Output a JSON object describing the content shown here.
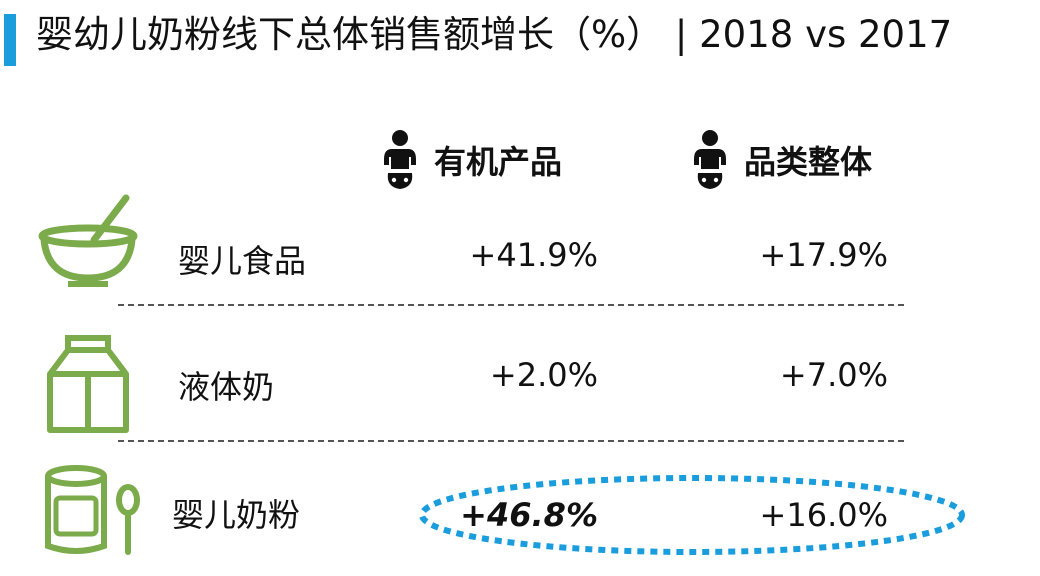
{
  "header": {
    "title": "婴幼儿奶粉线下总体销售额增长（%） | 2018 vs 2017",
    "accent_color": "#1a9ddc"
  },
  "columns": [
    {
      "label": "有机产品",
      "icon": "baby-icon"
    },
    {
      "label": "品类整体",
      "icon": "baby-icon"
    }
  ],
  "rows": [
    {
      "label": "婴儿食品",
      "icon": "bowl-icon",
      "organic": "+41.9%",
      "overall": "+17.9%"
    },
    {
      "label": "液体奶",
      "icon": "milk-carton-icon",
      "organic": "+2.0%",
      "overall": "+7.0%"
    },
    {
      "label": "婴儿奶粉",
      "icon": "formula-can-icon",
      "organic": "+46.8%",
      "overall": "+16.0%",
      "highlighted": true
    }
  ],
  "icon_color": "#7bab4a",
  "highlight_color": "#1a9ddc",
  "chart_data": {
    "type": "table",
    "title": "婴幼儿奶粉线下总体销售额增长（%） | 2018 vs 2017",
    "columns": [
      "有机产品",
      "品类整体"
    ],
    "categories": [
      "婴儿食品",
      "液体奶",
      "婴儿奶粉"
    ],
    "series": [
      {
        "name": "有机产品",
        "values": [
          41.9,
          2.0,
          46.8
        ]
      },
      {
        "name": "品类整体",
        "values": [
          17.9,
          7.0,
          16.0
        ]
      }
    ],
    "unit": "%",
    "highlight": {
      "row": "婴儿奶粉",
      "column": "有机产品"
    }
  }
}
